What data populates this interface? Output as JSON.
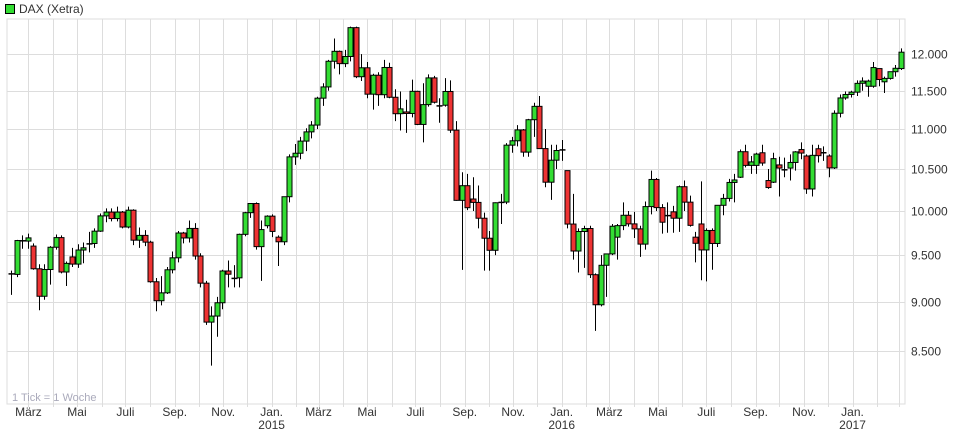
{
  "legend": {
    "label": "DAX (Xetra)",
    "color": "#33dd33"
  },
  "chart_data": {
    "type": "candlestick",
    "scale": "log",
    "ylim": [
      7990,
      12500
    ],
    "yticks": [
      8500,
      9000,
      9500,
      10000,
      10500,
      11000,
      11500,
      12000
    ],
    "ytick_labels": [
      "8.500",
      "9.000",
      "9.500",
      "10.000",
      "10.500",
      "11.000",
      "11.500",
      "12.000"
    ],
    "xticks": [
      {
        "date": "2014-03-01",
        "label": "März"
      },
      {
        "date": "2014-05-01",
        "label": "Mai"
      },
      {
        "date": "2014-07-01",
        "label": "Juli"
      },
      {
        "date": "2014-09-01",
        "label": "Sep."
      },
      {
        "date": "2014-11-01",
        "label": "Nov."
      },
      {
        "date": "2015-01-01",
        "label": "Jan.",
        "year": "2015"
      },
      {
        "date": "2015-03-01",
        "label": "März"
      },
      {
        "date": "2015-05-01",
        "label": "Mai"
      },
      {
        "date": "2015-07-01",
        "label": "Juli"
      },
      {
        "date": "2015-09-01",
        "label": "Sep."
      },
      {
        "date": "2015-11-01",
        "label": "Nov."
      },
      {
        "date": "2016-01-01",
        "label": "Jan.",
        "year": "2016"
      },
      {
        "date": "2016-03-01",
        "label": "März"
      },
      {
        "date": "2016-05-01",
        "label": "Mai"
      },
      {
        "date": "2016-07-01",
        "label": "Juli"
      },
      {
        "date": "2016-09-01",
        "label": "Sep."
      },
      {
        "date": "2016-11-01",
        "label": "Nov."
      },
      {
        "date": "2017-01-01",
        "label": "Jan.",
        "year": "2017"
      }
    ],
    "note": "1 Tick = 1 Woche",
    "grid": true,
    "up_color": "#33dd33",
    "down_color": "#ee3333",
    "columns": [
      "date",
      "open",
      "high",
      "low",
      "close"
    ],
    "candles": [
      [
        "2014-02-07",
        9300,
        9330,
        9070,
        9289
      ],
      [
        "2014-02-14",
        9289,
        9670,
        9260,
        9662
      ],
      [
        "2014-02-21",
        9662,
        9720,
        9570,
        9656
      ],
      [
        "2014-02-28",
        9656,
        9740,
        9570,
        9692
      ],
      [
        "2014-03-07",
        9600,
        9630,
        9340,
        9350
      ],
      [
        "2014-03-14",
        9350,
        9400,
        8910,
        9056
      ],
      [
        "2014-03-21",
        9056,
        9400,
        9020,
        9342
      ],
      [
        "2014-03-28",
        9342,
        9600,
        9180,
        9587
      ],
      [
        "2014-04-04",
        9587,
        9730,
        9560,
        9695
      ],
      [
        "2014-04-11",
        9695,
        9720,
        9300,
        9315
      ],
      [
        "2014-04-17",
        9315,
        9430,
        9165,
        9409
      ],
      [
        "2014-04-25",
        9480,
        9580,
        9370,
        9401
      ],
      [
        "2014-05-02",
        9401,
        9620,
        9360,
        9556
      ],
      [
        "2014-05-09",
        9556,
        9640,
        9410,
        9581
      ],
      [
        "2014-05-16",
        9620,
        9760,
        9530,
        9629
      ],
      [
        "2014-05-23",
        9629,
        9800,
        9580,
        9768
      ],
      [
        "2014-05-30",
        9768,
        9970,
        9760,
        9943
      ],
      [
        "2014-06-06",
        9943,
        10030,
        9870,
        9987
      ],
      [
        "2014-06-13",
        9987,
        10030,
        9880,
        9912
      ],
      [
        "2014-06-20",
        9912,
        10050,
        9880,
        9987
      ],
      [
        "2014-06-27",
        9987,
        10000,
        9800,
        9815
      ],
      [
        "2014-07-04",
        9815,
        10050,
        9800,
        10009
      ],
      [
        "2014-07-11",
        10009,
        10020,
        9610,
        9666
      ],
      [
        "2014-07-18",
        9666,
        9810,
        9580,
        9720
      ],
      [
        "2014-07-25",
        9720,
        9780,
        9600,
        9644
      ],
      [
        "2014-08-01",
        9644,
        9660,
        9200,
        9210
      ],
      [
        "2014-08-08",
        9210,
        9250,
        8900,
        9009
      ],
      [
        "2014-08-15",
        9009,
        9270,
        8960,
        9092
      ],
      [
        "2014-08-22",
        9092,
        9370,
        9080,
        9339
      ],
      [
        "2014-08-29",
        9339,
        9540,
        9300,
        9470
      ],
      [
        "2014-09-05",
        9470,
        9770,
        9420,
        9747
      ],
      [
        "2014-09-12",
        9747,
        9760,
        9630,
        9691
      ],
      [
        "2014-09-19",
        9691,
        9890,
        9640,
        9799
      ],
      [
        "2014-09-26",
        9799,
        9860,
        9450,
        9490
      ],
      [
        "2014-10-03",
        9490,
        9520,
        9150,
        9195
      ],
      [
        "2014-10-10",
        9195,
        9220,
        8760,
        8788
      ],
      [
        "2014-10-17",
        8788,
        8950,
        8355,
        8850
      ],
      [
        "2014-10-24",
        8850,
        9050,
        8640,
        8988
      ],
      [
        "2014-10-31",
        8988,
        9340,
        8920,
        9326
      ],
      [
        "2014-11-07",
        9326,
        9440,
        9150,
        9291
      ],
      [
        "2014-11-14",
        9240,
        9390,
        9150,
        9252
      ],
      [
        "2014-11-21",
        9252,
        9740,
        9150,
        9732
      ],
      [
        "2014-11-28",
        9732,
        9990,
        9710,
        9980
      ],
      [
        "2014-12-05",
        9980,
        10093,
        9920,
        10087
      ],
      [
        "2014-12-12",
        10087,
        10100,
        9560,
        9594
      ],
      [
        "2014-12-19",
        9594,
        9890,
        9220,
        9786
      ],
      [
        "2014-12-26",
        9830,
        9950,
        9800,
        9940
      ],
      [
        "2015-01-02",
        9940,
        9960,
        9700,
        9765
      ],
      [
        "2015-01-09",
        9700,
        9720,
        9380,
        9648
      ],
      [
        "2015-01-16",
        9648,
        10170,
        9610,
        10167
      ],
      [
        "2015-01-23",
        10167,
        10680,
        10100,
        10649
      ],
      [
        "2015-01-30",
        10649,
        10810,
        10550,
        10694
      ],
      [
        "2015-02-06",
        10694,
        10900,
        10620,
        10846
      ],
      [
        "2015-02-13",
        10846,
        11010,
        10720,
        10963
      ],
      [
        "2015-02-20",
        10963,
        11100,
        10880,
        11050
      ],
      [
        "2015-02-27",
        11050,
        11420,
        11000,
        11401
      ],
      [
        "2015-03-06",
        11401,
        11600,
        11300,
        11551
      ],
      [
        "2015-03-13",
        11551,
        11920,
        11500,
        11901
      ],
      [
        "2015-03-20",
        11901,
        12220,
        11800,
        12039
      ],
      [
        "2015-03-27",
        12039,
        12050,
        11720,
        11868
      ],
      [
        "2015-04-03",
        11868,
        12060,
        11820,
        11967
      ],
      [
        "2015-04-10",
        11967,
        12390,
        11900,
        12375
      ],
      [
        "2015-04-17",
        12375,
        12390,
        11670,
        11689
      ],
      [
        "2015-04-24",
        11689,
        12000,
        11630,
        11811
      ],
      [
        "2015-05-01",
        11811,
        11890,
        11400,
        11454
      ],
      [
        "2015-05-08",
        11454,
        11730,
        11250,
        11709
      ],
      [
        "2015-05-15",
        11709,
        11750,
        11300,
        11447
      ],
      [
        "2015-05-22",
        11447,
        11920,
        11400,
        11815
      ],
      [
        "2015-05-29",
        11815,
        11880,
        11400,
        11413
      ],
      [
        "2015-06-05",
        11413,
        11520,
        11100,
        11197
      ],
      [
        "2015-06-12",
        11197,
        11490,
        10980,
        11260
      ],
      [
        "2015-06-19",
        11220,
        11380,
        10950,
        11200
      ],
      [
        "2015-06-26",
        11200,
        11650,
        11150,
        11492
      ],
      [
        "2015-07-03",
        11492,
        11500,
        11050,
        11058
      ],
      [
        "2015-07-10",
        11058,
        11600,
        10830,
        11316
      ],
      [
        "2015-07-17",
        11316,
        11720,
        11290,
        11673
      ],
      [
        "2015-07-24",
        11673,
        11700,
        11330,
        11347
      ],
      [
        "2015-07-31",
        11290,
        11400,
        11080,
        11308
      ],
      [
        "2015-08-07",
        11308,
        11670,
        11290,
        11490
      ],
      [
        "2015-08-14",
        11490,
        11640,
        10950,
        10985
      ],
      [
        "2015-08-21",
        10985,
        11100,
        10120,
        10124
      ],
      [
        "2015-08-28",
        10124,
        10460,
        9338,
        10298
      ],
      [
        "2015-09-04",
        10298,
        10440,
        10010,
        10038
      ],
      [
        "2015-09-11",
        10140,
        10400,
        10000,
        10100
      ],
      [
        "2015-09-18",
        10100,
        10300,
        9800,
        9916
      ],
      [
        "2015-09-25",
        9916,
        9980,
        9330,
        9688
      ],
      [
        "2015-10-02",
        9688,
        9770,
        9330,
        9553
      ],
      [
        "2015-10-09",
        9553,
        10100,
        9500,
        10096
      ],
      [
        "2015-10-16",
        10096,
        10200,
        9850,
        10104
      ],
      [
        "2015-10-23",
        10104,
        10820,
        10080,
        10795
      ],
      [
        "2015-10-30",
        10795,
        10900,
        10700,
        10850
      ],
      [
        "2015-11-06",
        10850,
        11050,
        10780,
        10988
      ],
      [
        "2015-11-13",
        10988,
        11000,
        10650,
        10708
      ],
      [
        "2015-11-20",
        10708,
        11130,
        10650,
        11119
      ],
      [
        "2015-11-27",
        11119,
        11340,
        10900,
        11293
      ],
      [
        "2015-12-04",
        11293,
        11430,
        10750,
        10752
      ],
      [
        "2015-12-11",
        10752,
        11000,
        10280,
        10340
      ],
      [
        "2015-12-18",
        10340,
        10800,
        10130,
        10608
      ],
      [
        "2015-12-25",
        10608,
        10800,
        10500,
        10728
      ],
      [
        "2016-01-01",
        10728,
        10860,
        10600,
        10743
      ],
      [
        "2016-01-08",
        10480,
        10480,
        9800,
        9849
      ],
      [
        "2016-01-15",
        9849,
        10200,
        9450,
        9545
      ],
      [
        "2016-01-22",
        9545,
        9800,
        9310,
        9764
      ],
      [
        "2016-01-29",
        9764,
        9830,
        9360,
        9798
      ],
      [
        "2016-02-05",
        9798,
        9830,
        9250,
        9286
      ],
      [
        "2016-02-12",
        9286,
        9300,
        8699,
        8967
      ],
      [
        "2016-02-19",
        8967,
        9500,
        8950,
        9388
      ],
      [
        "2016-02-26",
        9388,
        9500,
        9050,
        9513
      ],
      [
        "2016-03-04",
        9513,
        9850,
        9500,
        9824
      ],
      [
        "2016-03-11",
        9700,
        9850,
        9450,
        9831
      ],
      [
        "2016-03-18",
        9831,
        10100,
        9780,
        9950
      ],
      [
        "2016-03-25",
        9950,
        10000,
        9820,
        9851
      ],
      [
        "2016-04-01",
        9851,
        9990,
        9690,
        9794
      ],
      [
        "2016-04-08",
        9794,
        9830,
        9480,
        9622
      ],
      [
        "2016-04-15",
        9622,
        10110,
        9560,
        10051
      ],
      [
        "2016-04-22",
        10051,
        10480,
        9960,
        10373
      ],
      [
        "2016-04-29",
        10373,
        10390,
        10000,
        10039
      ],
      [
        "2016-05-06",
        10039,
        10080,
        9740,
        9870
      ],
      [
        "2016-05-13",
        9940,
        10100,
        9750,
        9952
      ],
      [
        "2016-05-20",
        9990,
        10060,
        9750,
        9916
      ],
      [
        "2016-05-27",
        9916,
        10300,
        9760,
        10286
      ],
      [
        "2016-06-03",
        10286,
        10360,
        10000,
        10103
      ],
      [
        "2016-06-10",
        10103,
        10180,
        9820,
        9834
      ],
      [
        "2016-06-17",
        9700,
        9760,
        9420,
        9631
      ],
      [
        "2016-06-24",
        9850,
        10350,
        9226,
        9557
      ],
      [
        "2016-07-01",
        9557,
        9800,
        9214,
        9776
      ],
      [
        "2016-07-08",
        9776,
        9800,
        9340,
        9629
      ],
      [
        "2016-07-15",
        9629,
        10070,
        9590,
        10066
      ],
      [
        "2016-07-22",
        10066,
        10200,
        9950,
        10147
      ],
      [
        "2016-07-29",
        10147,
        10380,
        10110,
        10337
      ],
      [
        "2016-08-05",
        10337,
        10440,
        10100,
        10367
      ],
      [
        "2016-08-12",
        10400,
        10740,
        10390,
        10713
      ],
      [
        "2016-08-19",
        10713,
        10800,
        10520,
        10544
      ],
      [
        "2016-08-26",
        10544,
        10660,
        10440,
        10587
      ],
      [
        "2016-09-02",
        10544,
        10700,
        10440,
        10684
      ],
      [
        "2016-09-09",
        10700,
        10800,
        10540,
        10573
      ],
      [
        "2016-09-16",
        10360,
        10500,
        10260,
        10276
      ],
      [
        "2016-09-23",
        10340,
        10700,
        10330,
        10627
      ],
      [
        "2016-09-30",
        10550,
        10650,
        10170,
        10511
      ],
      [
        "2016-10-07",
        10490,
        10640,
        10400,
        10490
      ],
      [
        "2016-10-14",
        10511,
        10680,
        10360,
        10580
      ],
      [
        "2016-10-21",
        10580,
        10720,
        10480,
        10711
      ],
      [
        "2016-10-28",
        10740,
        10830,
        10620,
        10696
      ],
      [
        "2016-11-04",
        10660,
        10680,
        10200,
        10259
      ],
      [
        "2016-11-11",
        10259,
        10800,
        10170,
        10668
      ],
      [
        "2016-11-18",
        10750,
        10800,
        10580,
        10664
      ],
      [
        "2016-11-25",
        10700,
        10780,
        10600,
        10700
      ],
      [
        "2016-12-02",
        10660,
        10680,
        10400,
        10513
      ],
      [
        "2016-12-09",
        10513,
        11240,
        10500,
        11203
      ],
      [
        "2016-12-16",
        11203,
        11450,
        11150,
        11404
      ],
      [
        "2016-12-23",
        11404,
        11490,
        11380,
        11450
      ],
      [
        "2016-12-30",
        11450,
        11500,
        11410,
        11481
      ],
      [
        "2017-01-06",
        11481,
        11640,
        11430,
        11599
      ],
      [
        "2017-01-13",
        11600,
        11680,
        11500,
        11630
      ],
      [
        "2017-01-20",
        11560,
        11650,
        11420,
        11630
      ],
      [
        "2017-01-27",
        11560,
        11890,
        11540,
        11814
      ],
      [
        "2017-02-03",
        11800,
        11800,
        11560,
        11651
      ],
      [
        "2017-02-10",
        11620,
        11690,
        11470,
        11666
      ],
      [
        "2017-02-17",
        11666,
        11760,
        11650,
        11757
      ],
      [
        "2017-02-24",
        11757,
        11850,
        11690,
        11804
      ],
      [
        "2017-03-03",
        11800,
        12080,
        11780,
        12027
      ]
    ]
  }
}
